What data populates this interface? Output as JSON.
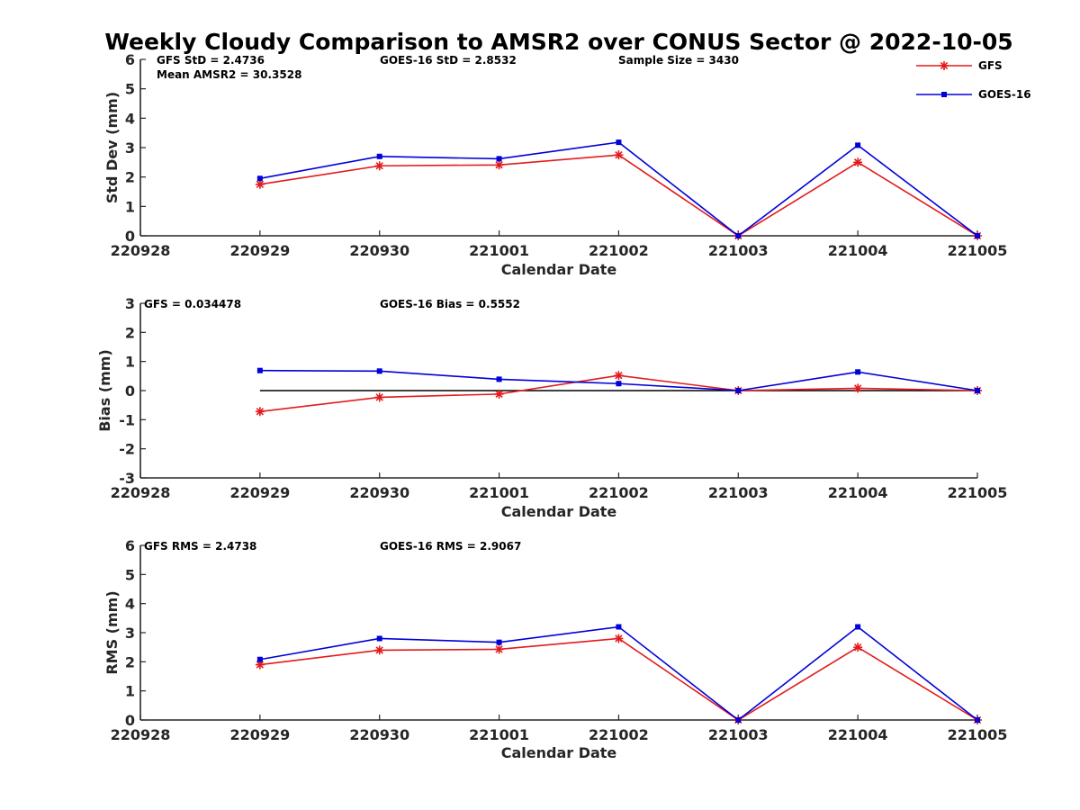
{
  "title": "Weekly Cloudy Comparison to AMSR2 over CONUS Sector @ 2022-10-05",
  "colors": {
    "gfs": "#e31a1c",
    "goes": "#0000d8",
    "axis": "#262626",
    "zero": "#000000"
  },
  "legend": {
    "placement": "top-right",
    "entries": [
      {
        "label": "GFS",
        "marker": "asterisk"
      },
      {
        "label": "GOES-16",
        "marker": "square"
      }
    ]
  },
  "chart_data": [
    {
      "type": "line",
      "xlabel": "Calendar Date",
      "ylabel": "Std Dev (mm)",
      "ylim": [
        0,
        6
      ],
      "yticks": [
        "0",
        "1",
        "2",
        "3",
        "4",
        "5",
        "6"
      ],
      "categories": [
        "220928",
        "220929",
        "220930",
        "221001",
        "221002",
        "221003",
        "221004",
        "221005"
      ],
      "annotations": [
        "GFS StD = 2.4736",
        "GOES-16 StD = 2.8532",
        "Sample Size = 3430",
        "Mean AMSR2 = 30.3528"
      ],
      "series": [
        {
          "name": "GFS",
          "values": [
            null,
            1.75,
            2.38,
            2.41,
            2.75,
            0.0,
            2.5,
            0.0
          ]
        },
        {
          "name": "GOES-16",
          "values": [
            null,
            1.95,
            2.7,
            2.62,
            3.18,
            0.0,
            3.08,
            0.0
          ]
        }
      ]
    },
    {
      "type": "line",
      "xlabel": "Calendar Date",
      "ylabel": "Bias (mm)",
      "ylim": [
        -3,
        3
      ],
      "yticks": [
        "-3",
        "-2",
        "-1",
        "0",
        "1",
        "2",
        "3"
      ],
      "categories": [
        "220928",
        "220929",
        "220930",
        "221001",
        "221002",
        "221003",
        "221004",
        "221005"
      ],
      "annotations": [
        "GFS = 0.034478",
        "GOES-16 Bias  = 0.5552"
      ],
      "series": [
        {
          "name": "GFS",
          "values": [
            null,
            -0.72,
            -0.23,
            -0.12,
            0.52,
            0.0,
            0.08,
            0.0
          ]
        },
        {
          "name": "GOES-16",
          "values": [
            null,
            0.69,
            0.67,
            0.39,
            0.24,
            0.0,
            0.64,
            0.0
          ]
        }
      ]
    },
    {
      "type": "line",
      "xlabel": "Calendar Date",
      "ylabel": "RMS (mm)",
      "ylim": [
        0,
        6
      ],
      "yticks": [
        "0",
        "1",
        "2",
        "3",
        "4",
        "5",
        "6"
      ],
      "categories": [
        "220928",
        "220929",
        "220930",
        "221001",
        "221002",
        "221003",
        "221004",
        "221005"
      ],
      "annotations": [
        "GFS RMS = 2.4738",
        "GOES-16 RMS = 2.9067"
      ],
      "series": [
        {
          "name": "GFS",
          "values": [
            null,
            1.9,
            2.4,
            2.43,
            2.8,
            0.0,
            2.5,
            0.0
          ]
        },
        {
          "name": "GOES-16",
          "values": [
            null,
            2.08,
            2.8,
            2.67,
            3.2,
            0.0,
            3.2,
            0.0
          ]
        }
      ]
    }
  ]
}
